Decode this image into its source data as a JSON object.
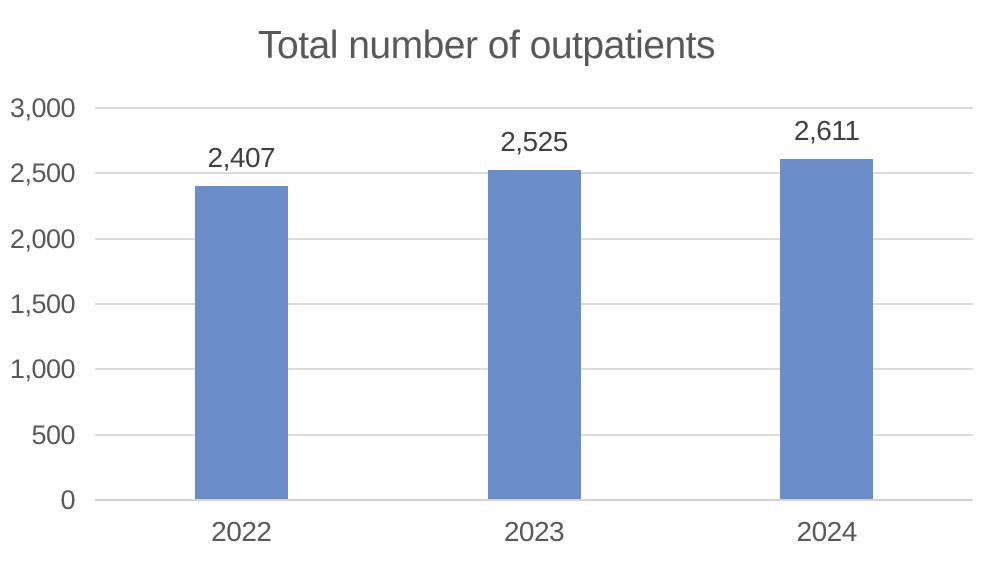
{
  "chart_data": {
    "type": "bar",
    "title": "Total number of outpatients",
    "categories": [
      "2022",
      "2023",
      "2024"
    ],
    "values": [
      2407,
      2525,
      2611
    ],
    "value_labels": [
      "2,407",
      "2,525",
      "2,611"
    ],
    "xlabel": "",
    "ylabel": "",
    "ylim": [
      0,
      3000
    ],
    "yticks": [
      0,
      500,
      1000,
      1500,
      2000,
      2500,
      3000
    ],
    "ytick_labels": [
      "0",
      "500",
      "1,000",
      "1,500",
      "2,000",
      "2,500",
      "3,000"
    ],
    "grid": "horizontal",
    "legend": "none",
    "colors": {
      "bar_fill": "#6A8CC9",
      "gridline": "#DCDCDC",
      "axis_line": "#D2D2D2",
      "title_text": "#595959",
      "tick_text": "#595959",
      "value_label_text": "#404040",
      "background": "#FFFFFF"
    }
  }
}
